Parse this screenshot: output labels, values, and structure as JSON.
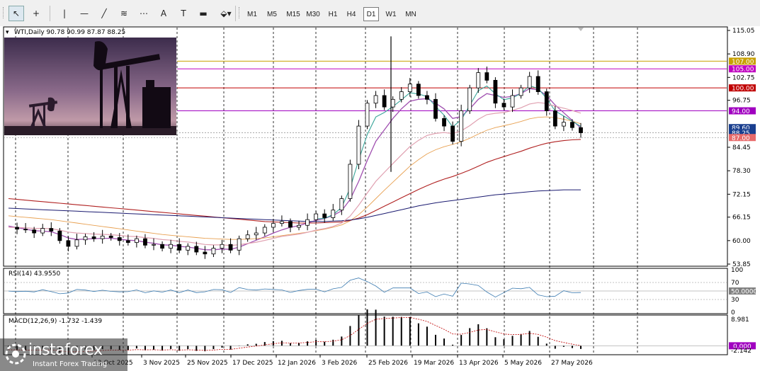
{
  "toolbar": {
    "tools": [
      {
        "name": "cursor-icon",
        "glyph": "↖"
      },
      {
        "name": "crosshair-icon",
        "glyph": "+"
      },
      {
        "name": "vertical-line-icon",
        "glyph": "|"
      },
      {
        "name": "horizontal-line-icon",
        "glyph": "—"
      },
      {
        "name": "trendline-icon",
        "glyph": "╱"
      },
      {
        "name": "channel-icon",
        "glyph": "≋"
      },
      {
        "name": "fibonacci-icon",
        "glyph": "⋯"
      },
      {
        "name": "text-icon",
        "glyph": "A"
      },
      {
        "name": "text-label-icon",
        "glyph": "T"
      },
      {
        "name": "rectangle-icon",
        "glyph": "▬"
      },
      {
        "name": "shapes-dropdown-icon",
        "glyph": "⬙▾"
      }
    ],
    "timeframes": [
      "M1",
      "M5",
      "M15",
      "M30",
      "H1",
      "H4",
      "D1",
      "W1",
      "MN"
    ],
    "active_timeframe": "D1"
  },
  "chart_header": {
    "symbol_line": "WTI,Daily  90.78 90.99 87.87 88.25"
  },
  "price_axis_ticks": [
    "115.05",
    "108.90",
    "102.75",
    "96.75",
    "84.45",
    "78.30",
    "72.15",
    "66.15",
    "60.00",
    "53.85"
  ],
  "price_tags": [
    {
      "label": "107.00",
      "value": 107.0,
      "bg": "#c8a000",
      "fg": "#ffffff"
    },
    {
      "label": "105.00",
      "value": 105.0,
      "bg": "#c000c0",
      "fg": "#ffffff"
    },
    {
      "label": "100.00",
      "value": 100.0,
      "bg": "#c00000",
      "fg": "#ffffff"
    },
    {
      "label": "94.00",
      "value": 94.0,
      "bg": "#a000c0",
      "fg": "#ffffff"
    },
    {
      "label": "89.60",
      "value": 89.6,
      "bg": "#1a3f8f",
      "fg": "#ffffff"
    },
    {
      "label": "88.25",
      "value": 88.25,
      "bg": "#1a3f8f",
      "fg": "#ffffff"
    },
    {
      "label": "87.00",
      "value": 87.0,
      "bg": "#e86a6a",
      "fg": "#ffffff"
    }
  ],
  "horizontal_levels": [
    {
      "value": 107.0,
      "color": "#c8a000"
    },
    {
      "value": 105.0,
      "color": "#c000c0"
    },
    {
      "value": 100.0,
      "color": "#c00000"
    },
    {
      "value": 94.0,
      "color": "#a000c0"
    }
  ],
  "date_labels": [
    "13 Oct 2025",
    "3 Nov 2025",
    "25 Nov 2025",
    "17 Dec 2025",
    "12 Jan 2026",
    "3 Feb 2026",
    "25 Feb 2026",
    "19 Mar 2026",
    "13 Apr 2026",
    "5 May 2026",
    "27 May 2026"
  ],
  "rsi": {
    "label": "RSI(14) 43.9550",
    "ticks": [
      "100",
      "70",
      "50.0000",
      "30",
      "0"
    ],
    "level_tag": "50.0000"
  },
  "macd": {
    "label": "MACD(12,26,9) -1.732 -1.439",
    "ticks": [
      "8.981",
      "0.000",
      "-2.142"
    ],
    "zero_tag": "0.000"
  },
  "colors": {
    "grid": "#000000",
    "candle": "#000000",
    "ma_fast": "#0e7a0e",
    "ma_teal": "#3aa69a",
    "ma_purple": "#a050b0",
    "ma_pink": "#e0a0b0",
    "ma_orange": "#e8a050",
    "ma_navy": "#1a1a70",
    "ma_red": "#b02020",
    "rsi_line": "#3a7ab0",
    "macd_signal": "#c00000"
  },
  "logo": {
    "brand": "instaforex",
    "tagline": "Instant Forex Trading"
  },
  "chart_data": {
    "type": "line",
    "title": "WTI,Daily",
    "ohlc_last": {
      "open": 90.78,
      "high": 90.99,
      "low": 87.87,
      "close": 88.25
    },
    "ylim": [
      53.85,
      115.05
    ],
    "x_labels": [
      "13 Oct 2025",
      "3 Nov 2025",
      "25 Nov 2025",
      "17 Dec 2025",
      "12 Jan 2026",
      "3 Feb 2026",
      "25 Feb 2026",
      "19 Mar 2026",
      "13 Apr 2026",
      "5 May 2026",
      "27 May 2026"
    ],
    "series": [
      {
        "values": [
          63.5,
          63.0,
          62.8,
          62.0,
          63.2,
          62.5,
          60.0,
          58.5,
          60.2,
          61.0,
          60.5,
          61.2,
          60.8,
          60.0,
          59.5,
          60.5,
          58.8,
          59.0,
          58.0,
          59.0,
          57.5,
          58.5,
          57.0,
          56.5,
          58.0,
          59.0,
          57.5,
          60.5,
          61.5,
          62.0,
          63.5,
          64.5,
          65.0,
          63.5,
          64.0,
          65.5,
          67.0,
          66.0,
          68.0,
          71.0,
          80.0,
          90.0,
          96.0,
          98.0,
          95.0,
          97.0,
          99.0,
          101.0,
          98.0,
          97.0,
          92.0,
          90.0,
          86.0,
          94.0,
          100.0,
          104.0,
          102.0,
          96.0,
          95.0,
          98.0,
          100.0,
          103.0,
          99.0,
          94.0,
          90.0,
          91.0,
          89.6,
          88.25
        ]
      },
      {
        "values": [
          63.8,
          63.4,
          63.0,
          62.6,
          62.5,
          62.3,
          61.6,
          60.7,
          60.3,
          60.4,
          60.5,
          60.6,
          60.6,
          60.4,
          60.1,
          60.0,
          59.6,
          59.3,
          58.9,
          58.8,
          58.5,
          58.3,
          58.0,
          57.6,
          57.6,
          57.8,
          57.7,
          58.3,
          59.2,
          60.1,
          61.0,
          62.0,
          62.8,
          63.5,
          63.9,
          64.6,
          65.3,
          65.8,
          66.6,
          67.8,
          70.8,
          75.5,
          81.0,
          86.0,
          89.0,
          92.0,
          94.5,
          96.5,
          97.0,
          97.2,
          96.0,
          94.5,
          92.0,
          92.5,
          94.5,
          97.0,
          98.5,
          98.0,
          97.5,
          97.8,
          98.5,
          99.8,
          99.5,
          98.0,
          95.5,
          93.5,
          91.5,
          89.5
        ]
      },
      {
        "values": [
          66.5,
          66.3,
          66.1,
          65.9,
          65.7,
          65.5,
          65.2,
          64.9,
          64.6,
          64.3,
          64.0,
          63.7,
          63.4,
          63.1,
          62.8,
          62.5,
          62.2,
          61.9,
          61.6,
          61.4,
          61.2,
          61.0,
          60.8,
          60.6,
          60.5,
          60.4,
          60.3,
          60.3,
          60.4,
          60.5,
          60.7,
          61.0,
          61.3,
          61.6,
          61.9,
          62.2,
          62.6,
          63.0,
          63.5,
          64.1,
          65.2,
          66.8,
          68.8,
          71.0,
          73.2,
          75.3,
          77.4,
          79.5,
          81.2,
          82.7,
          83.8,
          84.6,
          85.2,
          85.9,
          86.8,
          87.9,
          88.9,
          89.6,
          90.1,
          90.6,
          91.2,
          91.9,
          92.3,
          92.4,
          92.2,
          91.8,
          91.3,
          90.6
        ]
      },
      {
        "values": [
          71.0,
          70.8,
          70.6,
          70.4,
          70.2,
          70.0,
          69.8,
          69.6,
          69.4,
          69.2,
          69.0,
          68.8,
          68.6,
          68.4,
          68.2,
          68.0,
          67.8,
          67.6,
          67.4,
          67.2,
          67.0,
          66.8,
          66.6,
          66.4,
          66.2,
          66.0,
          65.8,
          65.6,
          65.4,
          65.2,
          65.0,
          64.9,
          64.8,
          64.7,
          64.6,
          64.6,
          64.6,
          64.7,
          64.8,
          64.9,
          65.3,
          65.9,
          66.8,
          67.9,
          69.0,
          70.1,
          71.2,
          72.3,
          73.4,
          74.4,
          75.3,
          76.1,
          76.8,
          77.6,
          78.5,
          79.5,
          80.5,
          81.3,
          82.0,
          82.7,
          83.4,
          84.2,
          84.9,
          85.5,
          85.9,
          86.2,
          86.4,
          86.5
        ]
      },
      {
        "values": [
          68.5,
          68.4,
          68.3,
          68.2,
          68.1,
          68.0,
          67.9,
          67.8,
          67.7,
          67.6,
          67.5,
          67.4,
          67.3,
          67.2,
          67.1,
          67.0,
          66.9,
          66.8,
          66.7,
          66.6,
          66.5,
          66.4,
          66.3,
          66.2,
          66.1,
          66.0,
          65.9,
          65.8,
          65.7,
          65.6,
          65.5,
          65.4,
          65.3,
          65.2,
          65.1,
          65.0,
          65.0,
          65.0,
          65.1,
          65.2,
          65.4,
          65.7,
          66.1,
          66.6,
          67.1,
          67.6,
          68.1,
          68.6,
          69.1,
          69.5,
          69.9,
          70.2,
          70.5,
          70.8,
          71.1,
          71.4,
          71.7,
          72.0,
          72.2,
          72.4,
          72.6,
          72.8,
          73.0,
          73.1,
          73.2,
          73.3,
          73.3,
          73.3
        ]
      }
    ],
    "rsi": {
      "period": 14,
      "value": 43.955,
      "levels": [
        70,
        50,
        30
      ],
      "ylim": [
        0,
        100
      ]
    },
    "macd": {
      "fast": 12,
      "slow": 26,
      "signal": 9,
      "macd": -1.732,
      "signal_value": -1.439,
      "ylim": [
        -2.142,
        8.981
      ]
    }
  }
}
